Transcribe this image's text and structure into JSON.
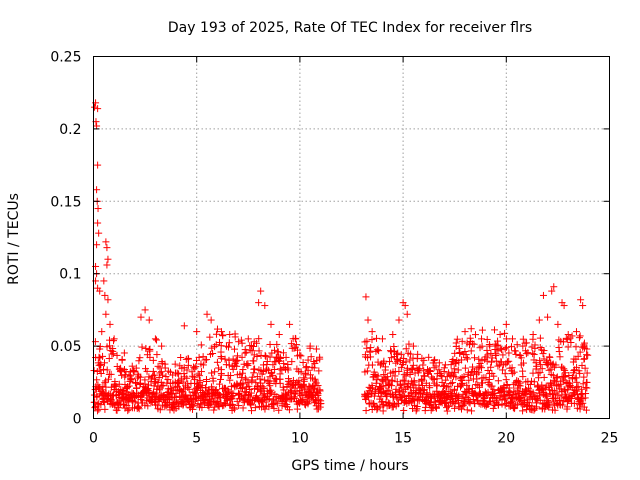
{
  "chart_data": {
    "type": "scatter",
    "title": "Day 193 of 2025, Rate Of TEC Index for receiver flrs",
    "xlabel": "GPS time / hours",
    "ylabel": "ROTI / TECUs",
    "xlim": [
      0,
      25
    ],
    "ylim": [
      0,
      0.25
    ],
    "xticks": [
      0,
      5,
      10,
      15,
      20,
      25
    ],
    "xtick_labels": [
      "0",
      "5",
      "10",
      "15",
      "20",
      "25"
    ],
    "yticks": [
      0,
      0.05,
      0.1,
      0.15,
      0.2,
      0.25
    ],
    "ytick_labels": [
      "0",
      "0.05",
      "0.1",
      "0.15",
      "0.2",
      "0.25"
    ],
    "grid": true,
    "marker": "+",
    "color": "#ff0000",
    "data_gap_hours": [
      11.0,
      13.1
    ],
    "series": [
      {
        "name": "ROTI",
        "points": [
          [
            0.05,
            0.215
          ],
          [
            0.1,
            0.218
          ],
          [
            0.12,
            0.205
          ],
          [
            0.15,
            0.202
          ],
          [
            0.2,
            0.214
          ],
          [
            0.2,
            0.175
          ],
          [
            0.15,
            0.158
          ],
          [
            0.18,
            0.15
          ],
          [
            0.22,
            0.145
          ],
          [
            0.2,
            0.135
          ],
          [
            0.25,
            0.128
          ],
          [
            0.15,
            0.12
          ],
          [
            0.1,
            0.105
          ],
          [
            0.15,
            0.1
          ],
          [
            0.1,
            0.095
          ],
          [
            0.2,
            0.09
          ],
          [
            0.3,
            0.088
          ],
          [
            0.6,
            0.122
          ],
          [
            0.65,
            0.118
          ],
          [
            0.7,
            0.11
          ],
          [
            0.65,
            0.106
          ],
          [
            0.5,
            0.095
          ],
          [
            0.55,
            0.085
          ],
          [
            0.7,
            0.082
          ],
          [
            0.6,
            0.072
          ],
          [
            0.8,
            0.065
          ],
          [
            1.0,
            0.055
          ],
          [
            0.4,
            0.06
          ],
          [
            0.3,
            0.048
          ],
          [
            2.3,
            0.07
          ],
          [
            2.5,
            0.075
          ],
          [
            2.7,
            0.068
          ],
          [
            3.0,
            0.055
          ],
          [
            3.3,
            0.05
          ],
          [
            4.4,
            0.064
          ],
          [
            5.0,
            0.06
          ],
          [
            5.5,
            0.072
          ],
          [
            5.7,
            0.068
          ],
          [
            6.2,
            0.06
          ],
          [
            6.6,
            0.058
          ],
          [
            7.2,
            0.052
          ],
          [
            7.5,
            0.055
          ],
          [
            8.0,
            0.08
          ],
          [
            8.1,
            0.088
          ],
          [
            8.3,
            0.078
          ],
          [
            8.6,
            0.065
          ],
          [
            9.0,
            0.058
          ],
          [
            9.5,
            0.065
          ],
          [
            9.8,
            0.055
          ],
          [
            10.5,
            0.05
          ],
          [
            10.8,
            0.048
          ],
          [
            13.2,
            0.084
          ],
          [
            13.3,
            0.068
          ],
          [
            13.5,
            0.06
          ],
          [
            14.0,
            0.055
          ],
          [
            14.5,
            0.058
          ],
          [
            14.8,
            0.068
          ],
          [
            15.0,
            0.08
          ],
          [
            15.1,
            0.078
          ],
          [
            15.2,
            0.072
          ],
          [
            15.5,
            0.05
          ],
          [
            16.5,
            0.04
          ],
          [
            17.0,
            0.035
          ],
          [
            17.5,
            0.045
          ],
          [
            18.0,
            0.06
          ],
          [
            18.3,
            0.062
          ],
          [
            18.8,
            0.055
          ],
          [
            19.2,
            0.05
          ],
          [
            19.7,
            0.058
          ],
          [
            20.0,
            0.065
          ],
          [
            20.3,
            0.055
          ],
          [
            20.8,
            0.05
          ],
          [
            21.3,
            0.058
          ],
          [
            21.6,
            0.068
          ],
          [
            21.8,
            0.085
          ],
          [
            22.0,
            0.07
          ],
          [
            22.2,
            0.088
          ],
          [
            22.3,
            0.091
          ],
          [
            22.5,
            0.065
          ],
          [
            22.7,
            0.08
          ],
          [
            22.8,
            0.078
          ],
          [
            23.0,
            0.058
          ],
          [
            23.4,
            0.06
          ],
          [
            23.6,
            0.082
          ],
          [
            23.7,
            0.078
          ],
          [
            23.9,
            0.048
          ]
        ]
      }
    ]
  }
}
